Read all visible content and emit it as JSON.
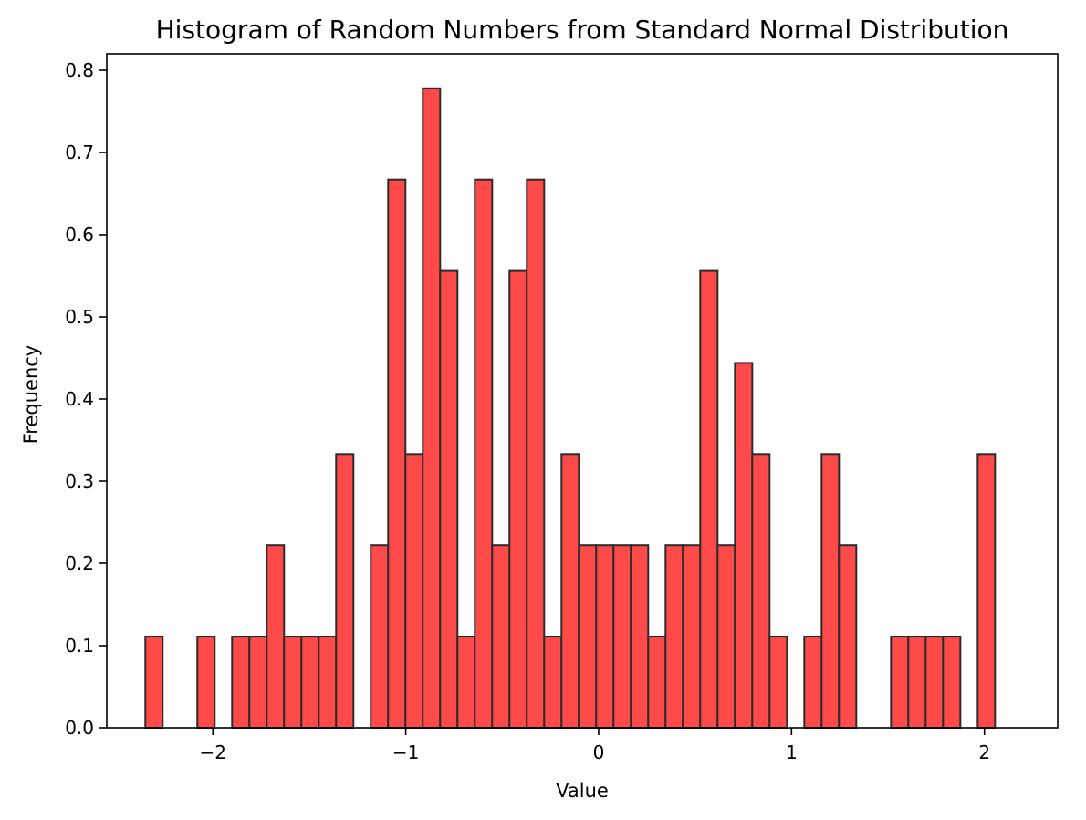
{
  "chart_data": {
    "type": "histogram",
    "title": "Histogram of Random Numbers from Standard Normal Distribution",
    "xlabel": "Value",
    "ylabel": "Frequency",
    "xlim": [
      -2.55,
      2.38
    ],
    "ylim": [
      0,
      0.82
    ],
    "xticks": [
      -2,
      -1,
      0,
      1,
      2
    ],
    "xtick_labels": [
      "−2",
      "−1",
      "0",
      "1",
      "2"
    ],
    "yticks": [
      0.0,
      0.1,
      0.2,
      0.3,
      0.4,
      0.5,
      0.6,
      0.7,
      0.8
    ],
    "ytick_labels": [
      "0.0",
      "0.1",
      "0.2",
      "0.3",
      "0.4",
      "0.5",
      "0.6",
      "0.7",
      "0.8"
    ],
    "grid": false,
    "bin_start": -2.35,
    "bin_width": 0.0899,
    "values": [
      0.111,
      0,
      0,
      0.111,
      0,
      0.111,
      0.111,
      0.222,
      0.111,
      0.111,
      0.111,
      0.333,
      0,
      0.222,
      0.667,
      0.333,
      0.778,
      0.556,
      0.111,
      0.667,
      0.222,
      0.556,
      0.667,
      0.111,
      0.333,
      0.222,
      0.222,
      0.222,
      0.222,
      0.111,
      0.222,
      0.222,
      0.556,
      0.222,
      0.444,
      0.333,
      0.111,
      0,
      0.111,
      0.333,
      0.222,
      0,
      0,
      0.111,
      0.111,
      0.111,
      0.111,
      0,
      0.333
    ],
    "bar_color": "#ff4a4a",
    "edge_color": "#2b2b2b"
  }
}
